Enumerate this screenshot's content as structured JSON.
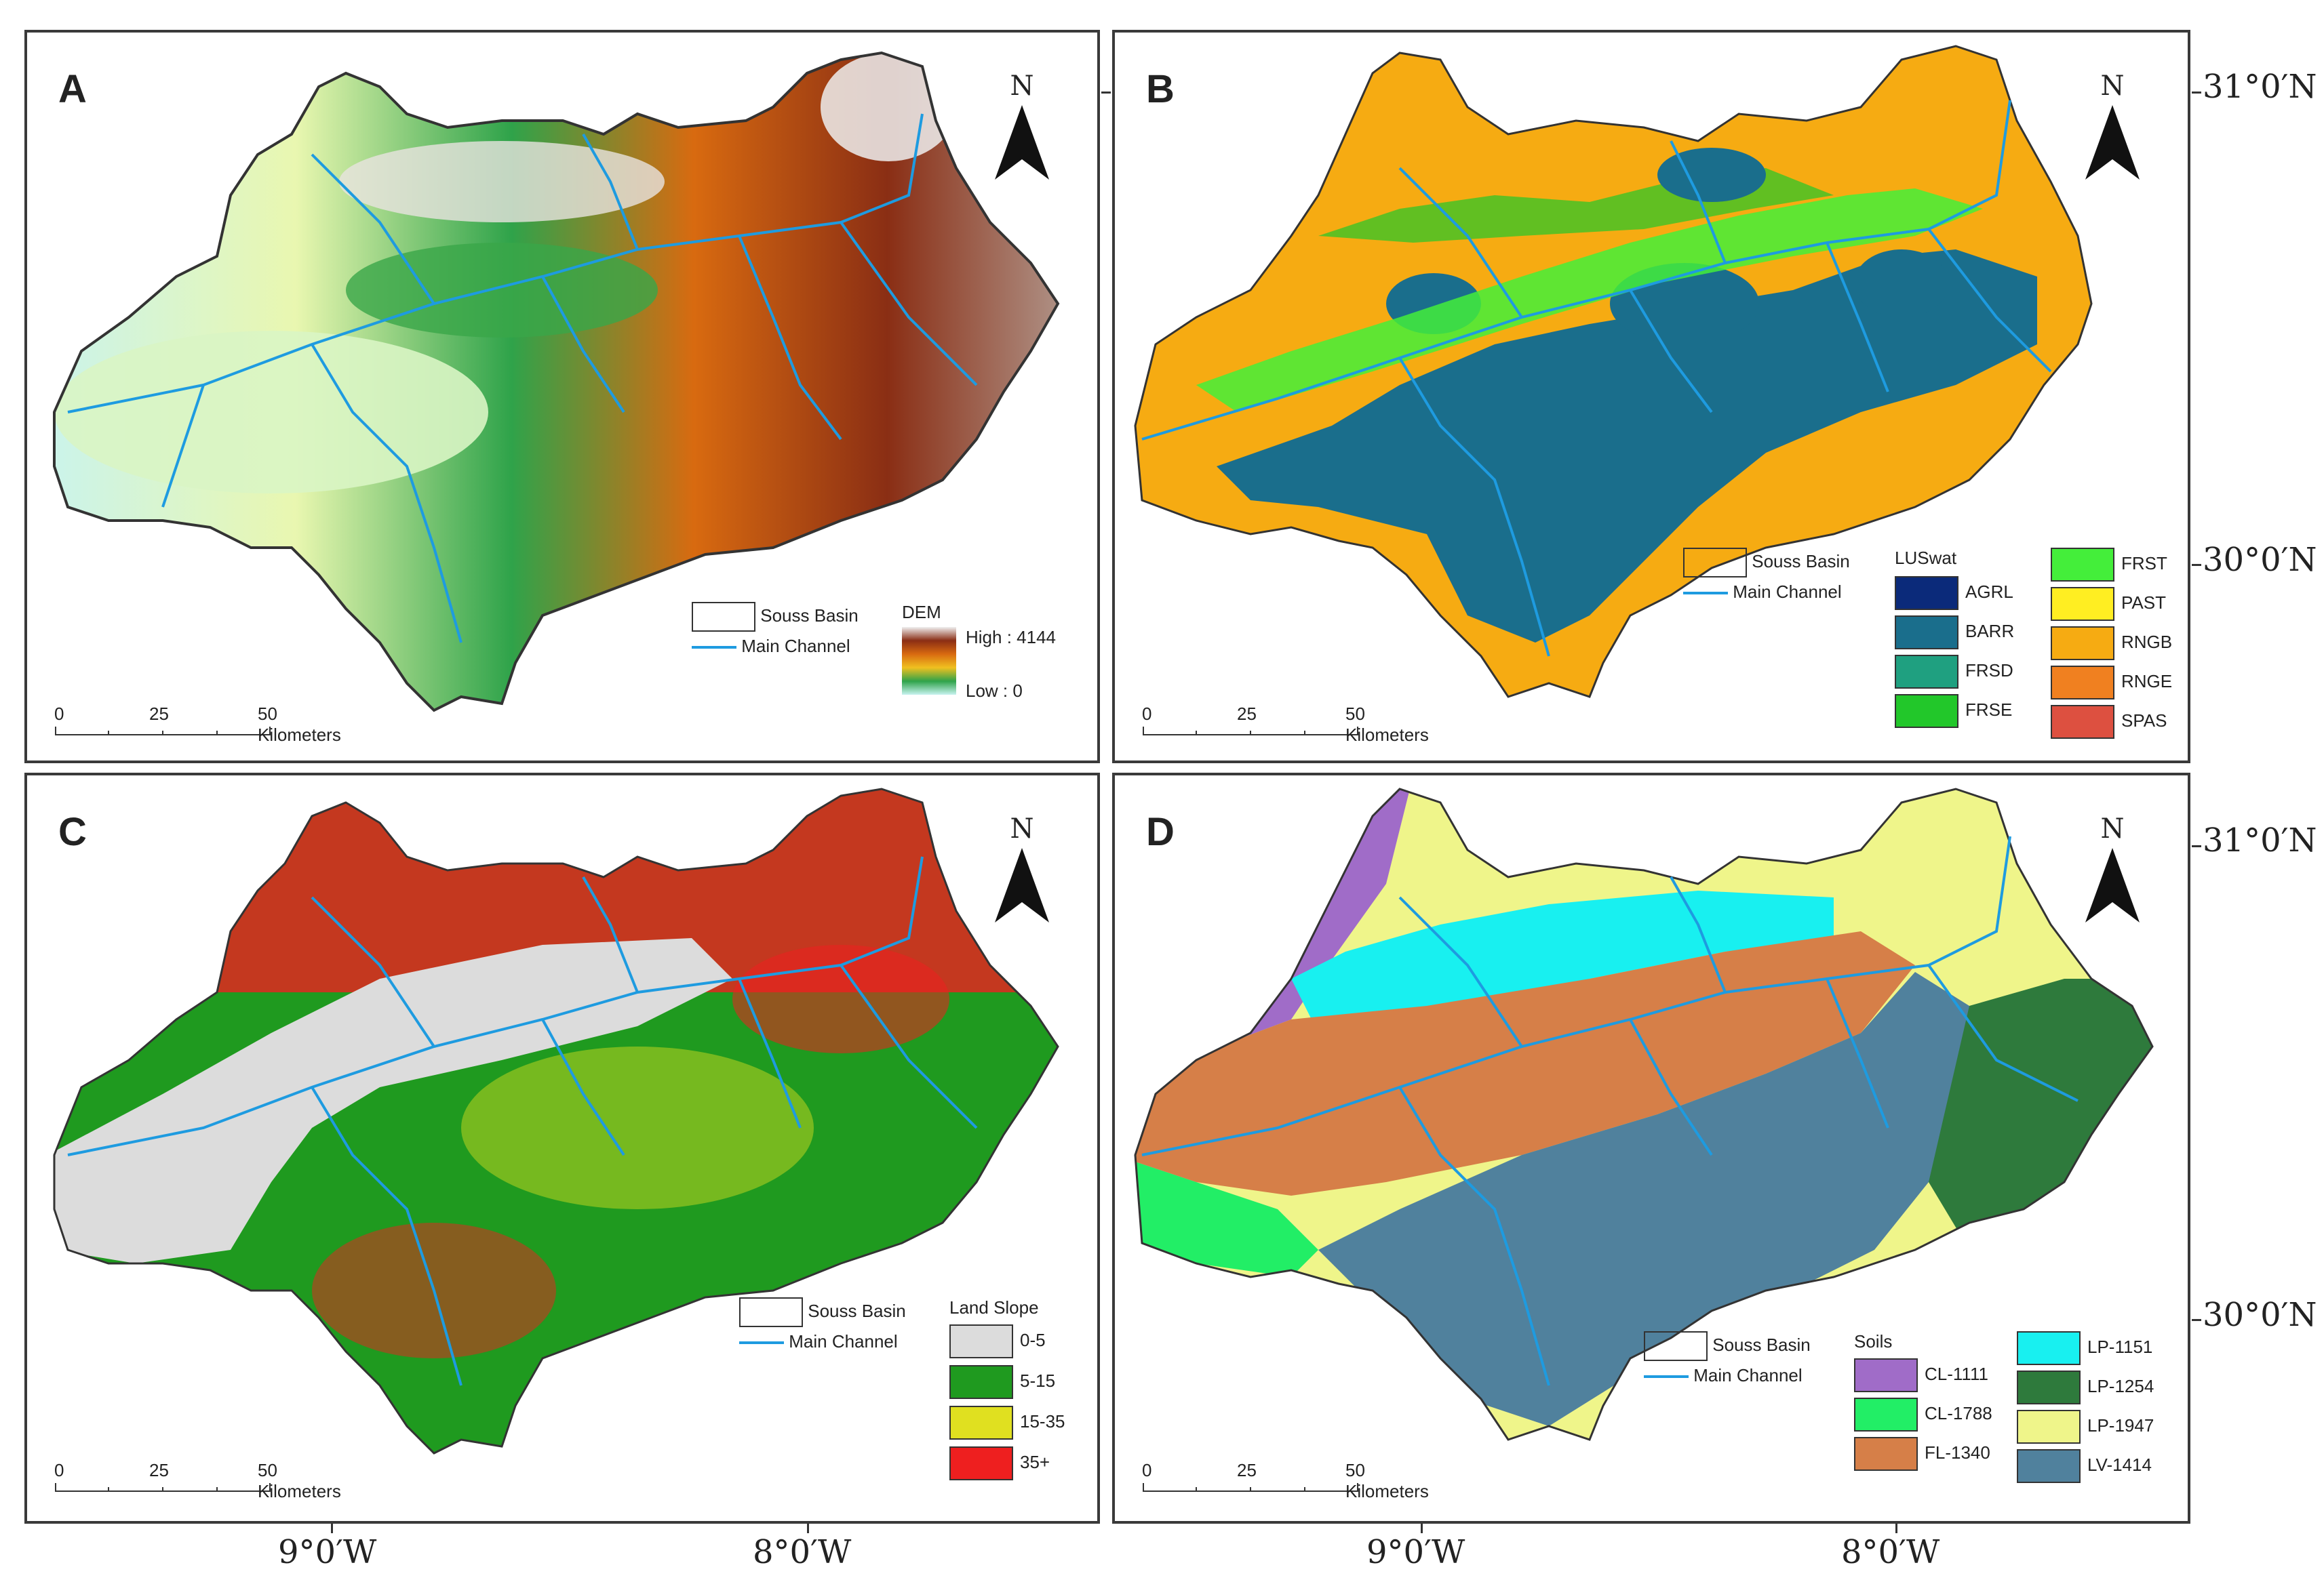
{
  "panels": {
    "a": {
      "letter": "A",
      "north": "N",
      "legend": {
        "basin": "Souss Basin",
        "channel": "Main Channel",
        "dem_title": "DEM",
        "high": "High : 4144",
        "low": "Low : 0"
      }
    },
    "b": {
      "letter": "B",
      "north": "N",
      "legend": {
        "basin": "Souss Basin",
        "channel": "Main Channel",
        "title": "LUSwat",
        "classes": [
          {
            "label": "AGRL",
            "color": "#0b2a7a"
          },
          {
            "label": "BARR",
            "color": "#1a6e8c"
          },
          {
            "label": "FRSD",
            "color": "#1fa080"
          },
          {
            "label": "FRSE",
            "color": "#22c72a"
          },
          {
            "label": "FRST",
            "color": "#44ee3a"
          },
          {
            "label": "PAST",
            "color": "#ffee22"
          },
          {
            "label": "RNGB",
            "color": "#f6ab12"
          },
          {
            "label": "RNGE",
            "color": "#f08020"
          },
          {
            "label": "SPAS",
            "color": "#dd5040"
          }
        ]
      }
    },
    "c": {
      "letter": "C",
      "north": "N",
      "legend": {
        "basin": "Souss Basin",
        "channel": "Main Channel",
        "title": "Land Slope",
        "classes": [
          {
            "label": "0-5",
            "color": "#dcdcdc"
          },
          {
            "label": "5-15",
            "color": "#1f9a1f"
          },
          {
            "label": "15-35",
            "color": "#e0e020"
          },
          {
            "label": "35+",
            "color": "#ee1f1f"
          }
        ]
      }
    },
    "d": {
      "letter": "D",
      "north": "N",
      "legend": {
        "basin": "Souss Basin",
        "channel": "Main Channel",
        "title": "Soils",
        "classes": [
          {
            "label": "CL-1111",
            "color": "#a06cc8"
          },
          {
            "label": "CL-1788",
            "color": "#22ee66"
          },
          {
            "label": "FL-1340",
            "color": "#d67f48"
          },
          {
            "label": "LP-1151",
            "color": "#18f0f0"
          },
          {
            "label": "LP-1254",
            "color": "#2e7a3c"
          },
          {
            "label": "LP-1947",
            "color": "#eff58a"
          },
          {
            "label": "LV-1414",
            "color": "#50819d"
          }
        ]
      }
    }
  },
  "scale": {
    "ticks": [
      "0",
      "25",
      "50 Kilometers"
    ]
  },
  "axes": {
    "lat_top": "31°0′N",
    "lat_bottom": "30°0′N",
    "lon_left": "9°0′W",
    "lon_right": "8°0′W"
  },
  "colors": {
    "channel": "#1e9be0",
    "outline": "#333333"
  }
}
